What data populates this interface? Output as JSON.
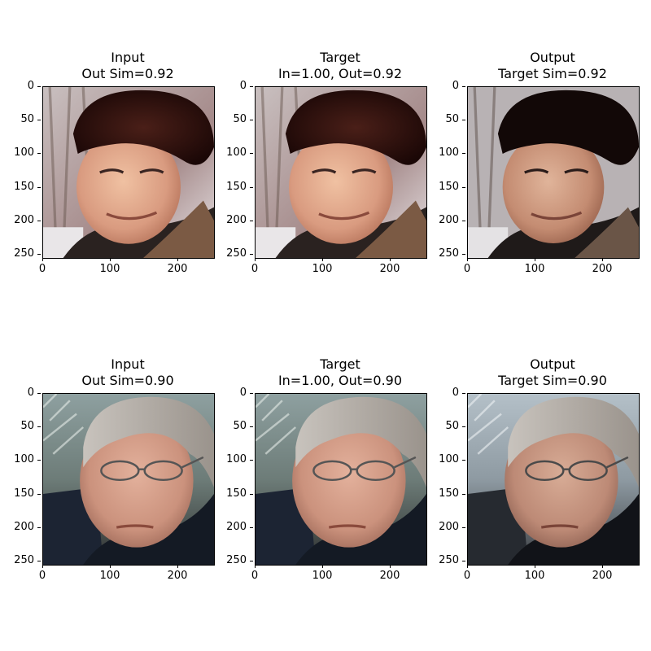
{
  "rows": [
    {
      "subject": "young man in fur hat and scarf",
      "panels": [
        {
          "title1": "Input",
          "title2": "Out Sim=0.92"
        },
        {
          "title1": "Target",
          "title2": "In=1.00, Out=0.92"
        },
        {
          "title1": "Output",
          "title2": "Target Sim=0.92"
        }
      ]
    },
    {
      "subject": "older man with glasses and dark jacket",
      "panels": [
        {
          "title1": "Input",
          "title2": "Out Sim=0.90"
        },
        {
          "title1": "Target",
          "title2": "In=1.00, Out=0.90"
        },
        {
          "title1": "Output",
          "title2": "Target Sim=0.90"
        }
      ]
    }
  ],
  "axis": {
    "yticks": [
      "0",
      "50",
      "100",
      "150",
      "200",
      "250"
    ],
    "xticks": [
      "0",
      "100",
      "200"
    ]
  }
}
